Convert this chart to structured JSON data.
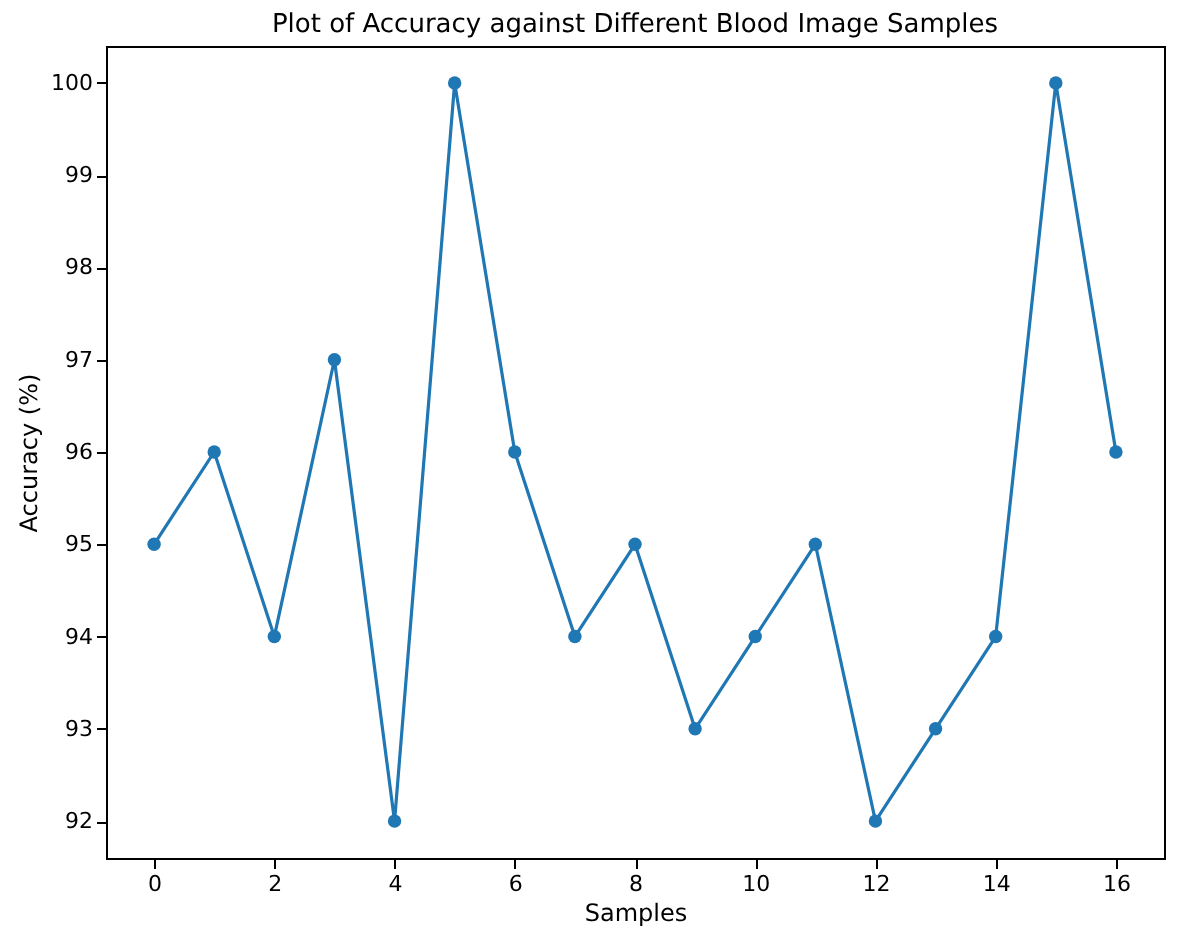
{
  "chart_data": {
    "type": "line",
    "title": "Plot of Accuracy against Different Blood Image Samples",
    "xlabel": "Samples",
    "ylabel": "Accuracy (%)",
    "x": [
      0,
      1,
      2,
      3,
      4,
      5,
      6,
      7,
      8,
      9,
      10,
      11,
      12,
      13,
      14,
      15,
      16
    ],
    "series": [
      {
        "color": "#1f77b4",
        "values": [
          95,
          96,
          94,
          97,
          92,
          100,
          96,
          94,
          95,
          93,
          94,
          95,
          92,
          93,
          94,
          100,
          96
        ]
      }
    ],
    "xlim": [
      -0.8,
      16.8
    ],
    "xticks": [
      0,
      2,
      4,
      6,
      8,
      10,
      12,
      14,
      16
    ],
    "ylim": [
      91.6,
      100.4
    ],
    "yticks": [
      92,
      93,
      94,
      95,
      96,
      97,
      98,
      99,
      100
    ],
    "marker": "circle",
    "line_style": "solid",
    "grid": false
  }
}
